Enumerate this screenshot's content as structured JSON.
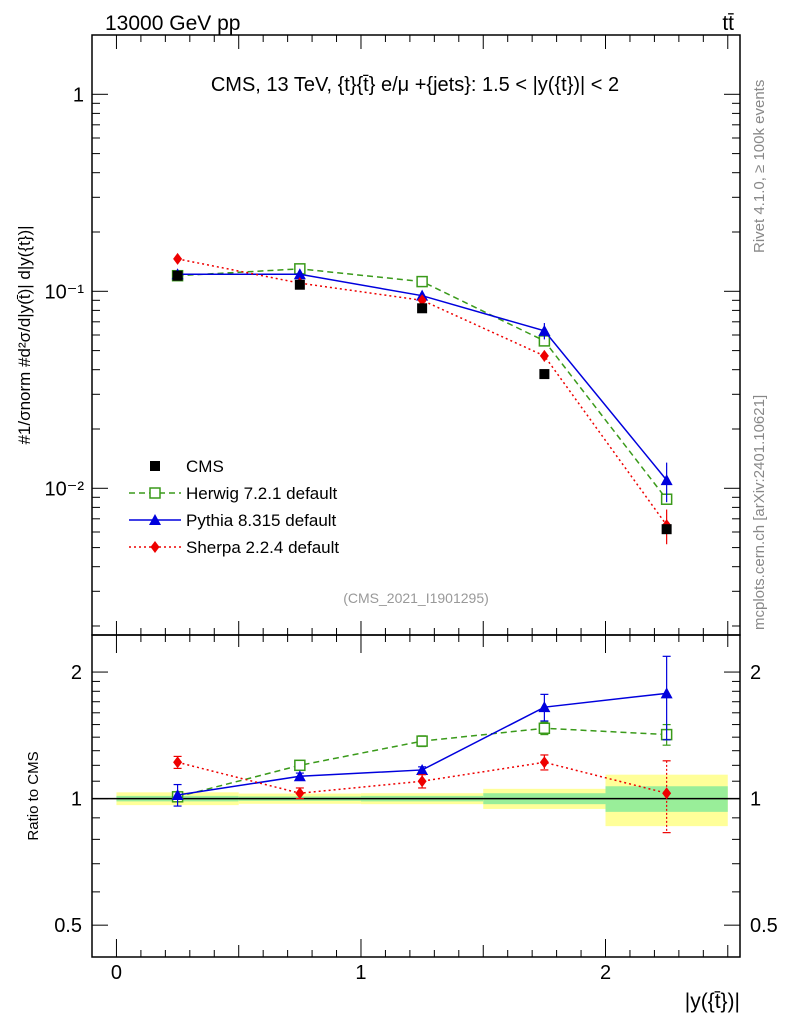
{
  "header": {
    "left": "13000 GeV pp",
    "right": "tt̄"
  },
  "side_labels": {
    "rivet": "Rivet 4.1.0, ≥ 100k events",
    "mcplots": "mcplots.cern.ch [arXiv:2401.10621]"
  },
  "chart_data": [
    {
      "panel": "main",
      "type": "line",
      "title": "CMS, 13 TeV, {t}{t̄} e/μ +{jets}: 1.5 < |y({t})| < 2",
      "watermark": "(CMS_2021_I1901295)",
      "xlabel": "|y({t̄})|",
      "ylabel": "#1/σnorm #d²σ/d|y(t̄)| d|y({t})|",
      "yscale": "log",
      "xlim": [
        -0.1,
        2.55
      ],
      "ylim": [
        0.0018,
        2.0
      ],
      "ytick_labels": [
        "1",
        "10⁻¹",
        "10⁻²"
      ],
      "x": [
        0.25,
        0.75,
        1.25,
        1.75,
        2.25
      ],
      "series": [
        {
          "name": "CMS",
          "color": "#000000",
          "marker": "square",
          "values": [
            0.12,
            0.108,
            0.082,
            0.038,
            0.0062
          ]
        },
        {
          "name": "Herwig 7.2.1 default",
          "color": "#3a9a1a",
          "marker": "open-square",
          "dash": "dashed",
          "values": [
            0.12,
            0.13,
            0.112,
            0.056,
            0.0088
          ]
        },
        {
          "name": "Pythia 8.315 default",
          "color": "#0000dd",
          "marker": "triangle",
          "dash": "solid",
          "values": [
            0.122,
            0.122,
            0.095,
            0.063,
            0.011
          ],
          "err": [
            0.004,
            0.004,
            0.003,
            0.006,
            0.0025
          ]
        },
        {
          "name": "Sherpa 2.2.4 default",
          "color": "#ee0000",
          "marker": "diamond",
          "dash": "dotted",
          "values": [
            0.146,
            0.11,
            0.09,
            0.047,
            0.0065
          ],
          "err": [
            0.003,
            0.003,
            0.003,
            0.003,
            0.0013
          ]
        }
      ]
    },
    {
      "panel": "ratio",
      "type": "line",
      "ylabel": "Ratio to CMS",
      "yscale": "log",
      "ylim": [
        0.42,
        2.45
      ],
      "ytick_labels": [
        "0.5",
        "1",
        "2"
      ],
      "xtick_labels": [
        "0",
        "1",
        "2"
      ],
      "x": [
        0.25,
        0.75,
        1.25,
        1.75,
        2.25
      ],
      "bins": [
        [
          0,
          0.5
        ],
        [
          0.5,
          1.0
        ],
        [
          1.0,
          1.5
        ],
        [
          1.5,
          2.0
        ],
        [
          2.0,
          2.5
        ]
      ],
      "band_stat": [
        0.015,
        0.012,
        0.015,
        0.03,
        0.07
      ],
      "band_total": [
        0.035,
        0.028,
        0.03,
        0.055,
        0.14
      ],
      "series": [
        {
          "name": "Herwig 7.2.1 default",
          "values": [
            1.01,
            1.2,
            1.37,
            1.47,
            1.42
          ],
          "err": [
            0.02,
            0.03,
            0.04,
            0.05,
            0.08
          ]
        },
        {
          "name": "Pythia 8.315 default",
          "values": [
            1.02,
            1.13,
            1.17,
            1.65,
            1.78
          ],
          "err": [
            0.06,
            0.02,
            0.02,
            0.12,
            0.4
          ]
        },
        {
          "name": "Sherpa 2.2.4 default",
          "values": [
            1.22,
            1.03,
            1.1,
            1.22,
            1.03
          ],
          "err": [
            0.04,
            0.03,
            0.04,
            0.05,
            0.2
          ]
        }
      ]
    }
  ]
}
